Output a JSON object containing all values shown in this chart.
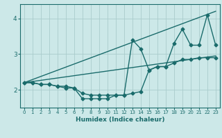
{
  "xlabel": "Humidex (Indice chaleur)",
  "bg_color": "#cce8e8",
  "grid_color": "#aacccc",
  "line_color": "#1a6b6b",
  "xlim": [
    -0.5,
    23.5
  ],
  "ylim": [
    1.5,
    4.4
  ],
  "yticks": [
    2,
    3,
    4
  ],
  "xticks": [
    0,
    1,
    2,
    3,
    4,
    5,
    6,
    7,
    8,
    9,
    10,
    11,
    12,
    13,
    14,
    15,
    16,
    17,
    18,
    19,
    20,
    21,
    22,
    23
  ],
  "series1_x": [
    0,
    1,
    2,
    3,
    4,
    5,
    6,
    7,
    8,
    9,
    10,
    11,
    12,
    13,
    14,
    15,
    16,
    17,
    18,
    19,
    20,
    21,
    22,
    23
  ],
  "series1_y": [
    2.2,
    2.2,
    2.15,
    2.15,
    2.1,
    2.1,
    2.05,
    1.9,
    1.85,
    1.85,
    1.85,
    1.85,
    1.85,
    1.9,
    1.95,
    2.55,
    2.65,
    2.65,
    2.75,
    2.85,
    2.85,
    2.9,
    2.9,
    2.9
  ],
  "series2_x": [
    0,
    1,
    2,
    3,
    4,
    5,
    6,
    7,
    8,
    9,
    10,
    11,
    12,
    13,
    14,
    15,
    16,
    17,
    18,
    19,
    20,
    21,
    22,
    23
  ],
  "series2_y": [
    2.2,
    2.2,
    2.15,
    2.15,
    2.1,
    2.05,
    2.05,
    1.75,
    1.75,
    1.75,
    1.75,
    1.85,
    1.85,
    3.4,
    3.15,
    2.55,
    2.65,
    2.65,
    3.3,
    3.7,
    3.25,
    3.25,
    4.1,
    3.25
  ],
  "series3_x": [
    0,
    23
  ],
  "series3_y": [
    2.2,
    4.2
  ],
  "series4_x": [
    0,
    23
  ],
  "series4_y": [
    2.2,
    2.95
  ],
  "marker": "D",
  "markersize": 2.5,
  "linewidth": 1.0
}
